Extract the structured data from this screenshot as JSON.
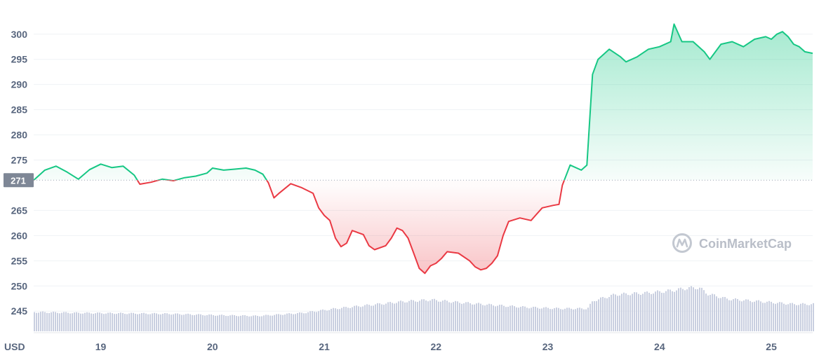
{
  "chart_data": {
    "type": "area",
    "currency_label": "USD",
    "reference_price": 271,
    "reference_label": "271",
    "ylim": [
      241,
      304
    ],
    "y_ticks": [
      {
        "value": 300,
        "label": "300"
      },
      {
        "value": 295,
        "label": "295"
      },
      {
        "value": 290,
        "label": "290"
      },
      {
        "value": 285,
        "label": "285"
      },
      {
        "value": 280,
        "label": "280"
      },
      {
        "value": 275,
        "label": "275"
      },
      {
        "value": 265,
        "label": "265"
      },
      {
        "value": 260,
        "label": "260"
      },
      {
        "value": 255,
        "label": "255"
      },
      {
        "value": 250,
        "label": "250"
      },
      {
        "value": 245,
        "label": "245"
      }
    ],
    "xlim": [
      18.4,
      25.37
    ],
    "x_ticks": [
      {
        "value": 19,
        "label": "19"
      },
      {
        "value": 20,
        "label": "20"
      },
      {
        "value": 21,
        "label": "21"
      },
      {
        "value": 22,
        "label": "22"
      },
      {
        "value": 23,
        "label": "23"
      },
      {
        "value": 24,
        "label": "24"
      },
      {
        "value": 25,
        "label": "25"
      }
    ],
    "price_points": [
      [
        18.4,
        271.0
      ],
      [
        18.5,
        273.0
      ],
      [
        18.6,
        273.8
      ],
      [
        18.7,
        272.6
      ],
      [
        18.8,
        271.2
      ],
      [
        18.9,
        273.1
      ],
      [
        19.0,
        274.2
      ],
      [
        19.1,
        273.5
      ],
      [
        19.2,
        273.8
      ],
      [
        19.3,
        272.0
      ],
      [
        19.35,
        270.2
      ],
      [
        19.45,
        270.6
      ],
      [
        19.55,
        271.2
      ],
      [
        19.65,
        270.9
      ],
      [
        19.75,
        271.5
      ],
      [
        19.85,
        271.8
      ],
      [
        19.95,
        272.4
      ],
      [
        20.0,
        273.4
      ],
      [
        20.1,
        273.0
      ],
      [
        20.2,
        273.2
      ],
      [
        20.3,
        273.4
      ],
      [
        20.38,
        273.0
      ],
      [
        20.45,
        272.2
      ],
      [
        20.5,
        270.5
      ],
      [
        20.55,
        267.5
      ],
      [
        20.6,
        268.5
      ],
      [
        20.7,
        270.3
      ],
      [
        20.8,
        269.5
      ],
      [
        20.9,
        268.4
      ],
      [
        20.95,
        265.5
      ],
      [
        21.0,
        264.0
      ],
      [
        21.05,
        263.0
      ],
      [
        21.1,
        259.5
      ],
      [
        21.15,
        257.8
      ],
      [
        21.2,
        258.5
      ],
      [
        21.25,
        261.0
      ],
      [
        21.35,
        260.2
      ],
      [
        21.4,
        258.0
      ],
      [
        21.45,
        257.2
      ],
      [
        21.55,
        258.0
      ],
      [
        21.6,
        259.5
      ],
      [
        21.65,
        261.5
      ],
      [
        21.7,
        261.0
      ],
      [
        21.75,
        259.5
      ],
      [
        21.8,
        256.5
      ],
      [
        21.85,
        253.5
      ],
      [
        21.9,
        252.5
      ],
      [
        21.95,
        254.0
      ],
      [
        22.0,
        254.5
      ],
      [
        22.05,
        255.5
      ],
      [
        22.1,
        256.8
      ],
      [
        22.2,
        256.5
      ],
      [
        22.3,
        255.0
      ],
      [
        22.35,
        253.8
      ],
      [
        22.4,
        253.2
      ],
      [
        22.45,
        253.5
      ],
      [
        22.5,
        254.5
      ],
      [
        22.55,
        256.0
      ],
      [
        22.6,
        260.0
      ],
      [
        22.65,
        262.8
      ],
      [
        22.75,
        263.5
      ],
      [
        22.85,
        263.0
      ],
      [
        22.95,
        265.5
      ],
      [
        23.05,
        266.0
      ],
      [
        23.1,
        266.2
      ],
      [
        23.13,
        270.0
      ],
      [
        23.2,
        274.0
      ],
      [
        23.3,
        273.0
      ],
      [
        23.35,
        274.0
      ],
      [
        23.4,
        292.0
      ],
      [
        23.45,
        295.0
      ],
      [
        23.5,
        296.0
      ],
      [
        23.55,
        297.0
      ],
      [
        23.65,
        295.5
      ],
      [
        23.7,
        294.5
      ],
      [
        23.8,
        295.5
      ],
      [
        23.9,
        297.0
      ],
      [
        24.0,
        297.5
      ],
      [
        24.1,
        298.5
      ],
      [
        24.13,
        302.0
      ],
      [
        24.2,
        298.5
      ],
      [
        24.3,
        298.5
      ],
      [
        24.4,
        296.5
      ],
      [
        24.45,
        295.0
      ],
      [
        24.55,
        298.0
      ],
      [
        24.65,
        298.5
      ],
      [
        24.75,
        297.5
      ],
      [
        24.85,
        299.0
      ],
      [
        24.95,
        299.5
      ],
      [
        25.0,
        299.0
      ],
      [
        25.05,
        300.0
      ],
      [
        25.1,
        300.5
      ],
      [
        25.15,
        299.5
      ],
      [
        25.2,
        298.0
      ],
      [
        25.25,
        297.5
      ],
      [
        25.3,
        296.5
      ],
      [
        25.37,
        296.2
      ]
    ],
    "volume_points": [
      [
        18.4,
        0.44
      ],
      [
        18.8,
        0.42
      ],
      [
        19.2,
        0.41
      ],
      [
        19.6,
        0.4
      ],
      [
        20.0,
        0.37
      ],
      [
        20.4,
        0.35
      ],
      [
        20.8,
        0.42
      ],
      [
        21.1,
        0.52
      ],
      [
        21.4,
        0.6
      ],
      [
        21.7,
        0.68
      ],
      [
        21.95,
        0.72
      ],
      [
        22.2,
        0.66
      ],
      [
        22.5,
        0.6
      ],
      [
        22.8,
        0.55
      ],
      [
        23.1,
        0.52
      ],
      [
        23.35,
        0.52
      ],
      [
        23.4,
        0.7
      ],
      [
        23.6,
        0.84
      ],
      [
        23.9,
        0.88
      ],
      [
        24.1,
        0.93
      ],
      [
        24.25,
        0.99
      ],
      [
        24.35,
        1.0
      ],
      [
        24.42,
        0.86
      ],
      [
        24.6,
        0.74
      ],
      [
        24.8,
        0.7
      ],
      [
        25.0,
        0.66
      ],
      [
        25.2,
        0.62
      ],
      [
        25.37,
        0.62
      ]
    ],
    "colors": {
      "up": "#16c784",
      "down": "#ea3943",
      "grid": "#eff2f5",
      "volume": "#c9cfe0",
      "label_bg": "#7e8796",
      "watermark": "#b9bec8"
    },
    "watermark_text": "CoinMarketCap",
    "watermark_icon": "coinmarketcap-logo-icon"
  }
}
